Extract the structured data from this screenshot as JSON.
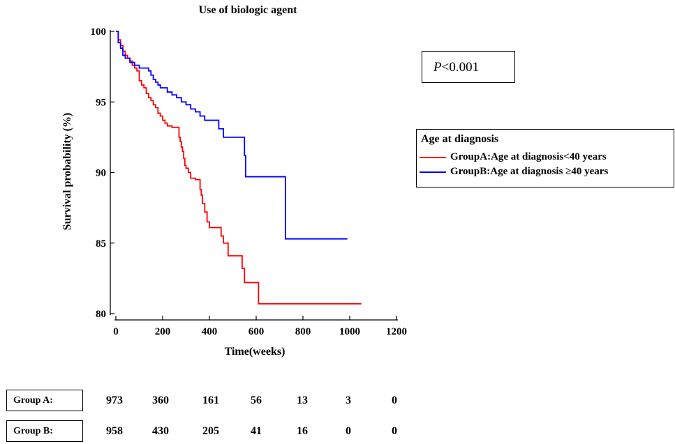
{
  "chart_data": {
    "type": "line",
    "title": "Use of biologic agent",
    "xlabel": "Time(weeks)",
    "ylabel": "Survival probability (%)",
    "xlim": [
      0,
      1200
    ],
    "ylim": [
      80,
      100
    ],
    "xticks": [
      0,
      200,
      400,
      600,
      800,
      1000,
      1200
    ],
    "yticks": [
      80,
      85,
      90,
      95,
      100
    ],
    "legend_title": "Age at diagnosis",
    "legend_placement": "right",
    "series": [
      {
        "name": "GroupA:Age at diagnosis<40 years",
        "color": "#ff0000",
        "x": [
          0,
          10,
          20,
          30,
          40,
          50,
          60,
          70,
          80,
          90,
          100,
          110,
          120,
          130,
          140,
          150,
          160,
          170,
          180,
          190,
          200,
          210,
          220,
          240,
          270,
          275,
          280,
          285,
          290,
          295,
          300,
          310,
          320,
          340,
          360,
          365,
          370,
          380,
          390,
          400,
          440,
          450,
          460,
          480,
          520,
          540,
          550,
          560,
          600,
          610,
          620,
          1050
        ],
        "y": [
          100,
          99.4,
          99.0,
          98.6,
          98.3,
          98.1,
          97.9,
          97.6,
          97.4,
          97.2,
          96.5,
          96.2,
          96.0,
          95.6,
          95.3,
          95.1,
          94.8,
          94.6,
          94.2,
          94.0,
          93.7,
          93.5,
          93.3,
          93.2,
          92.5,
          92.2,
          91.8,
          91.5,
          91.0,
          90.5,
          90.3,
          90.0,
          89.6,
          89.5,
          88.8,
          88.4,
          87.8,
          87.2,
          86.5,
          86.1,
          86.1,
          85.5,
          85.0,
          84.1,
          84.1,
          83.2,
          82.2,
          82.2,
          82.2,
          80.7,
          80.7,
          80.7
        ]
      },
      {
        "name": "GroupB:Age at diagnosis ≥40 years",
        "color": "#0000ff",
        "x": [
          0,
          10,
          20,
          30,
          40,
          60,
          80,
          100,
          140,
          150,
          160,
          170,
          180,
          190,
          200,
          220,
          240,
          260,
          280,
          300,
          320,
          340,
          360,
          380,
          400,
          440,
          460,
          470,
          540,
          550,
          555,
          720,
          725,
          990
        ],
        "y": [
          100,
          99.2,
          98.8,
          98.3,
          98.1,
          97.8,
          97.6,
          97.4,
          97.2,
          96.9,
          96.6,
          96.4,
          96.2,
          96.0,
          96.0,
          95.7,
          95.5,
          95.3,
          95.0,
          94.8,
          94.5,
          94.3,
          94.0,
          93.7,
          93.7,
          93.1,
          92.5,
          92.5,
          92.5,
          91.2,
          89.7,
          89.7,
          85.3,
          85.3
        ]
      }
    ]
  },
  "pvalue": {
    "italic": "P",
    "rest": "<0.001"
  },
  "risk_table": {
    "rows": [
      {
        "label": "Group  A:",
        "values": [
          "973",
          "360",
          "161",
          "56",
          "13",
          "3",
          "0"
        ]
      },
      {
        "label": "Group  B:",
        "values": [
          "958",
          "430",
          "205",
          "41",
          "16",
          "0",
          "0"
        ]
      }
    ]
  }
}
